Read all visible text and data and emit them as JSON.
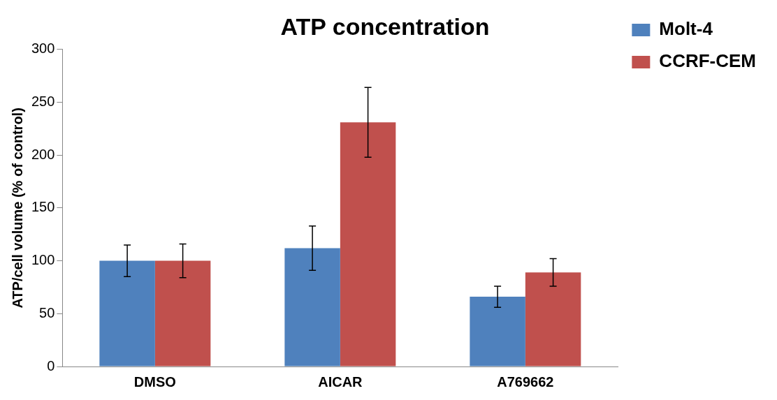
{
  "chart_data": {
    "type": "bar",
    "title": "ATP concentration",
    "ylabel": "ATP/cell volume (% of control)",
    "categories": [
      "DMSO",
      "AICAR",
      "A769662"
    ],
    "series": [
      {
        "name": "Molt-4",
        "color": "#4f81bd",
        "values": [
          100,
          112,
          66
        ],
        "errors": [
          15,
          21,
          10
        ]
      },
      {
        "name": "CCRF-CEM",
        "color": "#c0504d",
        "values": [
          100,
          231,
          89
        ],
        "errors": [
          16,
          33,
          13
        ]
      }
    ],
    "ylim": [
      0,
      300
    ],
    "yticks": [
      0,
      50,
      100,
      150,
      200,
      250,
      300
    ],
    "grid": false,
    "legend": "right"
  }
}
